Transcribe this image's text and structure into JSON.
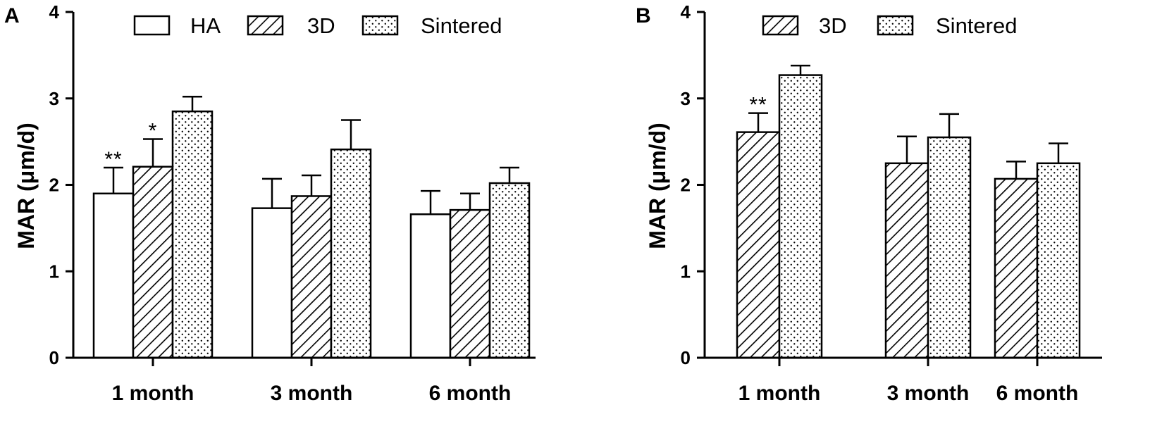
{
  "chart_data": [
    {
      "type": "bar",
      "panel": "A",
      "title": "",
      "xlabel": "",
      "ylabel": "MAR (μm/d)",
      "ylim": [
        0,
        4
      ],
      "yticks": [
        0,
        1,
        2,
        3,
        4
      ],
      "categories": [
        "1 month",
        "3 month",
        "6 month"
      ],
      "series": [
        {
          "name": "HA",
          "pattern": "none",
          "values": [
            1.9,
            1.73,
            1.66
          ],
          "errors": [
            0.3,
            0.34,
            0.27
          ]
        },
        {
          "name": "3D",
          "pattern": "hatch",
          "values": [
            2.21,
            1.87,
            1.71
          ],
          "errors": [
            0.32,
            0.24,
            0.19
          ]
        },
        {
          "name": "Sintered",
          "pattern": "dots",
          "values": [
            2.85,
            2.41,
            2.02
          ],
          "errors": [
            0.17,
            0.34,
            0.18
          ]
        }
      ],
      "annotations": [
        {
          "category": "1 month",
          "series": "HA",
          "text": "**"
        },
        {
          "category": "1 month",
          "series": "3D",
          "text": "*"
        }
      ],
      "legend": "top"
    },
    {
      "type": "bar",
      "panel": "B",
      "title": "",
      "xlabel": "",
      "ylabel": "MAR (μm/d)",
      "ylim": [
        0,
        4
      ],
      "yticks": [
        0,
        1,
        2,
        3,
        4
      ],
      "categories": [
        "1 month",
        "3 month",
        "6 month"
      ],
      "series": [
        {
          "name": "3D",
          "pattern": "hatch",
          "values": [
            2.61,
            2.25,
            2.07
          ],
          "errors": [
            0.22,
            0.31,
            0.2
          ]
        },
        {
          "name": "Sintered",
          "pattern": "dots",
          "values": [
            3.27,
            2.55,
            2.25
          ],
          "errors": [
            0.11,
            0.27,
            0.23
          ]
        }
      ],
      "annotations": [
        {
          "category": "1 month",
          "series": "3D",
          "text": "**"
        }
      ],
      "legend": "top"
    }
  ],
  "colors": {
    "stroke": "#000000",
    "fill": "#ffffff"
  }
}
